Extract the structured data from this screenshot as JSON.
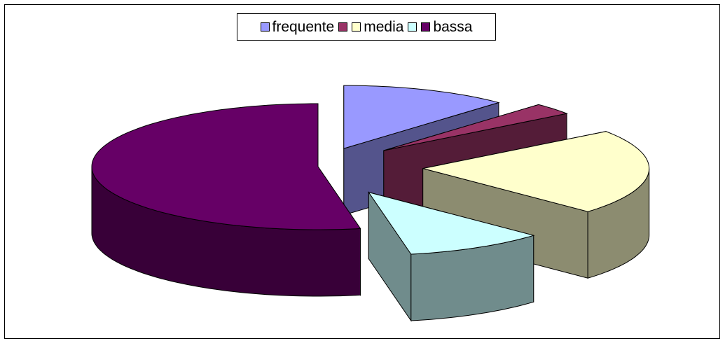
{
  "chart_data": {
    "type": "pie",
    "title": "",
    "pie_style": "3d-exploded",
    "legend_position": "top",
    "categories": [
      "frequente",
      "",
      "media",
      "",
      "bassa"
    ],
    "values": [
      12,
      3,
      22,
      10,
      53
    ],
    "colors": [
      "#9999ff",
      "#993366",
      "#ffffcc",
      "#ccffff",
      "#660066"
    ],
    "legend": [
      {
        "label": "frequente",
        "color": "#9999ff"
      },
      {
        "label": "",
        "color": "#993366"
      },
      {
        "label": "media",
        "color": "#ffffcc"
      },
      {
        "label": "",
        "color": "#ccffff"
      },
      {
        "label": "bassa",
        "color": "#660066"
      }
    ]
  }
}
